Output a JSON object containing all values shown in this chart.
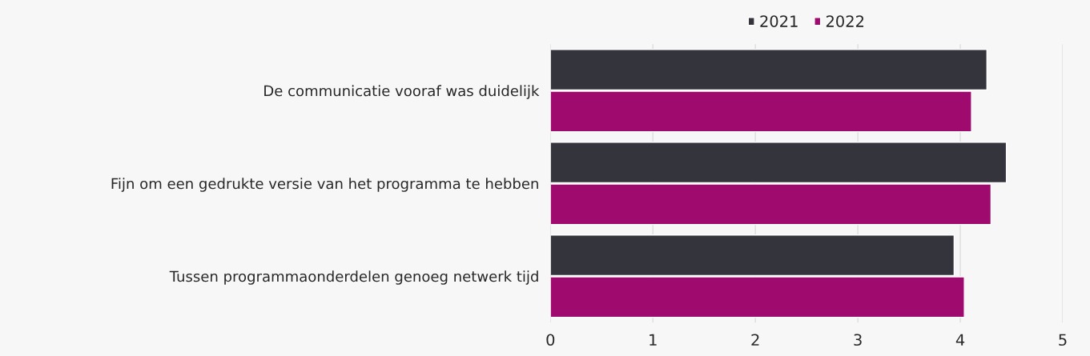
{
  "chart_data": {
    "type": "bar",
    "orientation": "horizontal",
    "categories": [
      "De communicatie vooraf was duidelijk",
      "Fijn om een gedrukte versie van het programma te hebben",
      "Tussen programmaonderdelen genoeg netwerk tijd"
    ],
    "series": [
      {
        "name": "2021",
        "color": "#34343c",
        "values": [
          4.26,
          4.45,
          3.94
        ]
      },
      {
        "name": "2022",
        "color": "#9e0a6e",
        "values": [
          4.11,
          4.3,
          4.04
        ]
      }
    ],
    "xlim": [
      0,
      5
    ],
    "xticks": [
      0,
      1,
      2,
      3,
      4,
      5
    ],
    "grid": "x",
    "legend": "top"
  }
}
